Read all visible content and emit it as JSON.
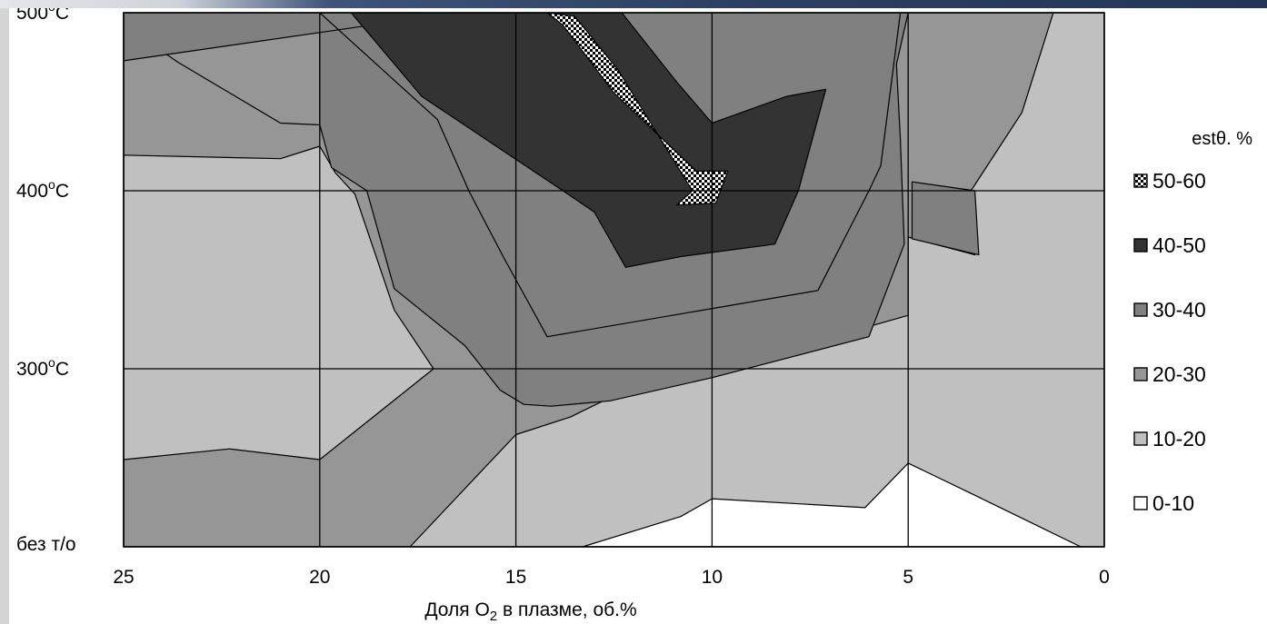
{
  "chart_data": {
    "type": "heatmap",
    "subtype": "filled contour",
    "xlabel_parts": [
      "Доля O",
      "2",
      " в плазме, об.%"
    ],
    "x_ticks": [
      25,
      20,
      15,
      10,
      5,
      0
    ],
    "x_reversed": true,
    "xlim": [
      25,
      0
    ],
    "y_categories": [
      "без т/о",
      "300°C",
      "400°C",
      "500°C"
    ],
    "y_tick_labels": [
      {
        "main": "без т/о",
        "sup": ""
      },
      {
        "main": "300",
        "sup": "o",
        "rest": "C"
      },
      {
        "main": "400",
        "sup": "o",
        "rest": "C"
      },
      {
        "main": "500",
        "sup": "o",
        "rest": "C"
      }
    ],
    "ylim": [
      0,
      3
    ],
    "grid": true,
    "legend_title": "estθ. %",
    "legend_position": "right",
    "levels": [
      {
        "label": "50-60",
        "range": [
          50,
          60
        ],
        "color": "#ffffff",
        "pattern": "checker"
      },
      {
        "label": "40-50",
        "range": [
          40,
          50
        ],
        "color": "#333333"
      },
      {
        "label": "30-40",
        "range": [
          30,
          40
        ],
        "color": "#808080"
      },
      {
        "label": "20-30",
        "range": [
          20,
          30
        ],
        "color": "#969696"
      },
      {
        "label": "10-20",
        "range": [
          10,
          20
        ],
        "color": "#c0c0c0"
      },
      {
        "label": "0-10",
        "range": [
          0,
          10
        ],
        "color": "#ffffff"
      }
    ],
    "regions": [
      {
        "level": "20-30",
        "points": [
          [
            25,
            0
          ],
          [
            25,
            3
          ],
          [
            0,
            3
          ],
          [
            0,
            0
          ]
        ]
      },
      {
        "level": "10-20",
        "points": [
          [
            25,
            0
          ],
          [
            25,
            0.49
          ],
          [
            22.3,
            0.55
          ],
          [
            20,
            0.49
          ],
          [
            17.1,
            1.0
          ],
          [
            18.1,
            1.33
          ],
          [
            19.1,
            1.98
          ],
          [
            19.6,
            2.1
          ],
          [
            20,
            2.25
          ],
          [
            21,
            2.18
          ],
          [
            25,
            2.2
          ],
          [
            25,
            0
          ]
        ]
      },
      {
        "level": "10-20",
        "points": [
          [
            17.7,
            0
          ],
          [
            15,
            0.63
          ],
          [
            13.6,
            0.73
          ],
          [
            11.1,
            1.0
          ],
          [
            10,
            1.06
          ],
          [
            6.6,
            1.2
          ],
          [
            5,
            1.3
          ],
          [
            5,
            1.74
          ],
          [
            3.3,
            1.64
          ],
          [
            3.4,
            2.0
          ],
          [
            2.1,
            2.44
          ],
          [
            1.3,
            3
          ],
          [
            0,
            3
          ],
          [
            0,
            0
          ]
        ]
      },
      {
        "level": "30-40",
        "points": [
          [
            20,
            2.37
          ],
          [
            19.7,
            2.13
          ],
          [
            18.8,
            2.0
          ],
          [
            18.1,
            1.45
          ],
          [
            16.3,
            1.13
          ],
          [
            15.4,
            0.88
          ],
          [
            14.8,
            0.8
          ],
          [
            14.1,
            0.79
          ],
          [
            12.6,
            0.82
          ],
          [
            10,
            0.95
          ],
          [
            6,
            1.18
          ],
          [
            5.1,
            1.7
          ],
          [
            5.2,
            2.29
          ],
          [
            5.3,
            2.71
          ],
          [
            5,
            3
          ],
          [
            15.2,
            3
          ],
          [
            20,
            3
          ]
        ]
      },
      {
        "level": "30-40",
        "points": [
          [
            3.3,
            2.0
          ],
          [
            3.2,
            1.64
          ],
          [
            4.9,
            1.73
          ],
          [
            4.9,
            2.05
          ]
        ]
      },
      {
        "level": "20-30",
        "points": [
          [
            25,
            2.72
          ],
          [
            25,
            2.93
          ],
          [
            23.6,
            2.72
          ],
          [
            21,
            2.38
          ],
          [
            20,
            2.37
          ],
          [
            20,
            3
          ],
          [
            25,
            3
          ]
        ]
      },
      {
        "level": "30-40",
        "points": [
          [
            25,
            2.73
          ],
          [
            25,
            3
          ],
          [
            20,
            3
          ],
          [
            17,
            2.4
          ],
          [
            16.2,
            2.0
          ],
          [
            15.8,
            1.83
          ],
          [
            15.3,
            1.62
          ],
          [
            14.2,
            1.18
          ],
          [
            7.3,
            1.44
          ],
          [
            6.0,
            2.0
          ],
          [
            5.7,
            2.14
          ],
          [
            5.2,
            3
          ],
          [
            16.5,
            3
          ]
        ]
      },
      {
        "level": "40-50",
        "points": [
          [
            19.2,
            3
          ],
          [
            17.4,
            2.53
          ],
          [
            15.5,
            2.25
          ],
          [
            13.8,
            2.0
          ],
          [
            13.0,
            1.88
          ],
          [
            12.2,
            1.57
          ],
          [
            10.8,
            1.63
          ],
          [
            8.4,
            1.7
          ],
          [
            7.8,
            2.0
          ],
          [
            7.1,
            2.57
          ],
          [
            8.1,
            2.53
          ],
          [
            10,
            2.38
          ],
          [
            10.9,
            2.61
          ],
          [
            12.3,
            3
          ]
        ]
      },
      {
        "level": "50-60",
        "points": [
          [
            14.2,
            3
          ],
          [
            13.5,
            2.98
          ],
          [
            12.4,
            2.68
          ],
          [
            10.5,
            2.0
          ],
          [
            10.9,
            1.92
          ],
          [
            9.9,
            1.93
          ],
          [
            9.6,
            2.11
          ],
          [
            10.4,
            2.11
          ],
          [
            12.5,
            2.55
          ],
          [
            13.8,
            2.93
          ]
        ]
      },
      {
        "level": "0-10",
        "points": [
          [
            13.3,
            0
          ],
          [
            10.8,
            0.17
          ],
          [
            10,
            0.27
          ],
          [
            6.1,
            0.22
          ],
          [
            5,
            0.47
          ],
          [
            3.4,
            0.3
          ],
          [
            0.6,
            0
          ],
          [
            13.3,
            0
          ]
        ]
      }
    ]
  }
}
